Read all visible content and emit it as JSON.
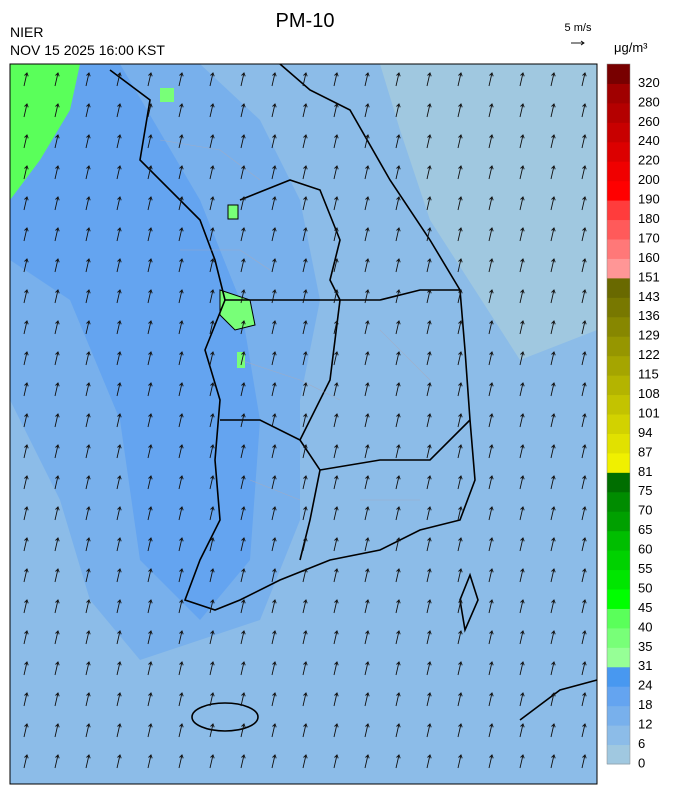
{
  "header": {
    "title": "PM-10",
    "source": "NIER",
    "datetime": "NOV 15 2025 16:00 KST",
    "wind_scale": "5 m/s"
  },
  "legend": {
    "unit": "μg/m³",
    "bins": [
      {
        "value": 0,
        "color": "#a0c8e0"
      },
      {
        "value": 6,
        "color": "#8cbce8"
      },
      {
        "value": 12,
        "color": "#78b0ec"
      },
      {
        "value": 18,
        "color": "#64a4f0"
      },
      {
        "value": 24,
        "color": "#4898f0"
      },
      {
        "value": 31,
        "color": "#96ff96"
      },
      {
        "value": 35,
        "color": "#78ff78"
      },
      {
        "value": 40,
        "color": "#5aff5a"
      },
      {
        "value": 45,
        "color": "#00ff00"
      },
      {
        "value": 50,
        "color": "#00e600"
      },
      {
        "value": 55,
        "color": "#00d200"
      },
      {
        "value": 60,
        "color": "#00be00"
      },
      {
        "value": 65,
        "color": "#00a000"
      },
      {
        "value": 70,
        "color": "#008c00"
      },
      {
        "value": 75,
        "color": "#006e00"
      },
      {
        "value": 81,
        "color": "#f0f000"
      },
      {
        "value": 87,
        "color": "#e1e100"
      },
      {
        "value": 94,
        "color": "#d2d200"
      },
      {
        "value": 101,
        "color": "#c3c300"
      },
      {
        "value": 108,
        "color": "#b4b400"
      },
      {
        "value": 115,
        "color": "#a5a500"
      },
      {
        "value": 122,
        "color": "#969600"
      },
      {
        "value": 129,
        "color": "#878700"
      },
      {
        "value": 136,
        "color": "#787800"
      },
      {
        "value": 143,
        "color": "#696900"
      },
      {
        "value": 151,
        "color": "#ff9696"
      },
      {
        "value": 160,
        "color": "#ff7878"
      },
      {
        "value": 170,
        "color": "#ff5a5a"
      },
      {
        "value": 180,
        "color": "#ff3c3c"
      },
      {
        "value": 190,
        "color": "#ff0000"
      },
      {
        "value": 200,
        "color": "#f00000"
      },
      {
        "value": 220,
        "color": "#dc0000"
      },
      {
        "value": 240,
        "color": "#c80000"
      },
      {
        "value": 260,
        "color": "#b40000"
      },
      {
        "value": 280,
        "color": "#a00000"
      },
      {
        "value": 320,
        "color": "#780000"
      }
    ]
  }
}
